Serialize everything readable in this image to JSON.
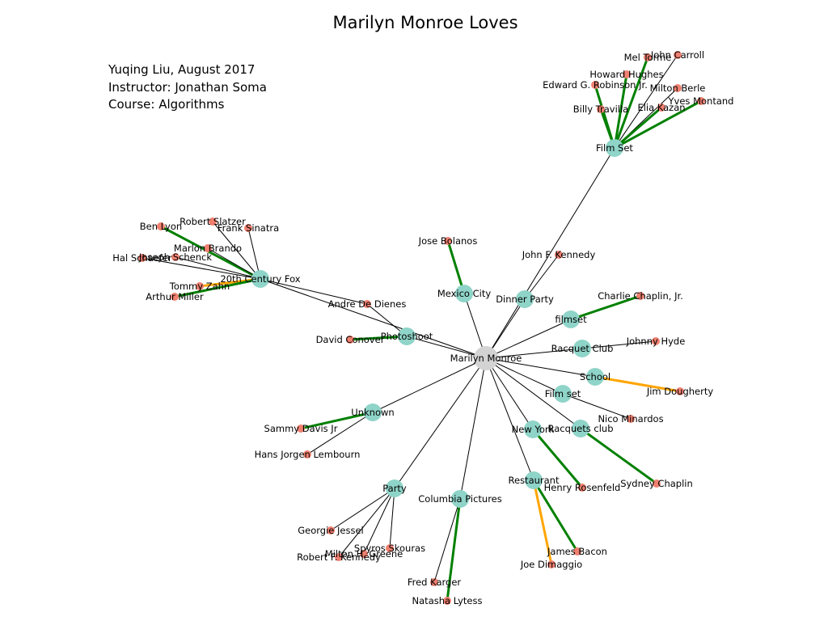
{
  "title": "Marilyn Monroe Loves",
  "credits": {
    "author_line": "Yuqing Liu, August 2017",
    "instructor_line": "Instructor: Jonathan Soma",
    "course_line": "Course: Algorithms"
  },
  "colors": {
    "center_node": "#d3d3d3",
    "place_node": "#8fd4c8",
    "person_node": "#f08070",
    "edge_plain": "#000000",
    "edge_green": "#008000",
    "edge_orange": "#ffa500"
  },
  "nodes": {
    "center": {
      "label": "Marilyn Monroe"
    },
    "film_set": {
      "label": "Film Set"
    },
    "fox": {
      "label": "20th Century Fox"
    },
    "mexico_city": {
      "label": "Mexico City"
    },
    "dinner_party": {
      "label": "Dinner Party"
    },
    "photoshoot": {
      "label": "Photoshoot"
    },
    "filmset_lc": {
      "label": "filmset"
    },
    "racquet_club": {
      "label": "Racquet Club"
    },
    "school": {
      "label": "School"
    },
    "film_set_lc": {
      "label": "Film set"
    },
    "new_york": {
      "label": "New York"
    },
    "racquets_club": {
      "label": "Racquets club"
    },
    "unknown": {
      "label": "Unknown"
    },
    "party": {
      "label": "Party"
    },
    "columbia": {
      "label": "Columbia Pictures"
    },
    "restaurant": {
      "label": "Restaurant"
    },
    "mel_torme": {
      "label": "Mel Torme"
    },
    "john_carroll": {
      "label": "John Carroll"
    },
    "howard_hughes": {
      "label": "Howard Hughes"
    },
    "edward_robinson": {
      "label": "Edward G. Robinson Jr."
    },
    "milton_berle": {
      "label": "Milton Berle"
    },
    "yves_montand": {
      "label": "Yves Montand"
    },
    "elia_kazan": {
      "label": "Elia Kazan"
    },
    "billy_travilla": {
      "label": "Billy Travilla"
    },
    "robert_slatzer": {
      "label": "Robert Slatzer"
    },
    "ben_lyon": {
      "label": "Ben Lyon"
    },
    "frank_sinatra": {
      "label": "Frank Sinatra"
    },
    "marlon_brando": {
      "label": "Marlon Brando"
    },
    "hal_schaefer": {
      "label": "Hal Schaefer"
    },
    "joseph_schenck": {
      "label": "Joseph Schenck"
    },
    "tommy_zahn": {
      "label": "Tommy Zahn"
    },
    "arthur_miller": {
      "label": "Arthur Miller"
    },
    "jose_bolanos": {
      "label": "Jose Bolanos"
    },
    "jfk": {
      "label": "John F. Kennedy"
    },
    "andre_de_dienes": {
      "label": "Andre De Dienes"
    },
    "david_conover": {
      "label": "David Conover"
    },
    "charlie_chaplin_jr": {
      "label": "Charlie Chaplin, Jr."
    },
    "johnny_hyde": {
      "label": "Johnny Hyde"
    },
    "jim_dougherty": {
      "label": "Jim Dougherty"
    },
    "nico_minardos": {
      "label": "Nico Minardos"
    },
    "sammy_davis": {
      "label": "Sammy Davis Jr"
    },
    "hans_jorgen": {
      "label": "Hans Jorgen Lembourn"
    },
    "sydney_chaplin": {
      "label": "Sydney Chaplin"
    },
    "henry_rosenfeld": {
      "label": "Henry Rosenfeld"
    },
    "georgie_jessel": {
      "label": "Georgie Jessel"
    },
    "spyros_skouras": {
      "label": "Spyros Skouras"
    },
    "milton_greene": {
      "label": "Milton H. Greene"
    },
    "rfk": {
      "label": "Robert F. Kennedy"
    },
    "james_bacon": {
      "label": "James Bacon"
    },
    "joe_dimaggio": {
      "label": "Joe Dimaggio"
    },
    "fred_karger": {
      "label": "Fred Karger"
    },
    "natasha_lytess": {
      "label": "Natasha Lytess"
    }
  },
  "edges": [
    [
      "center",
      "film_set",
      "plain"
    ],
    [
      "center",
      "fox",
      "plain"
    ],
    [
      "center",
      "mexico_city",
      "plain"
    ],
    [
      "center",
      "dinner_party",
      "plain"
    ],
    [
      "center",
      "photoshoot",
      "plain"
    ],
    [
      "center",
      "filmset_lc",
      "plain"
    ],
    [
      "center",
      "racquet_club",
      "plain"
    ],
    [
      "center",
      "school",
      "plain"
    ],
    [
      "center",
      "film_set_lc",
      "plain"
    ],
    [
      "center",
      "new_york",
      "plain"
    ],
    [
      "center",
      "racquets_club",
      "plain"
    ],
    [
      "center",
      "unknown",
      "plain"
    ],
    [
      "center",
      "party",
      "plain"
    ],
    [
      "center",
      "columbia",
      "plain"
    ],
    [
      "center",
      "restaurant",
      "plain"
    ],
    [
      "film_set",
      "mel_torme",
      "green"
    ],
    [
      "film_set",
      "john_carroll",
      "plain"
    ],
    [
      "film_set",
      "howard_hughes",
      "green"
    ],
    [
      "film_set",
      "edward_robinson",
      "green"
    ],
    [
      "film_set",
      "milton_berle",
      "plain"
    ],
    [
      "film_set",
      "yves_montand",
      "green"
    ],
    [
      "film_set",
      "elia_kazan",
      "green"
    ],
    [
      "film_set",
      "billy_travilla",
      "green"
    ],
    [
      "fox",
      "robert_slatzer",
      "plain"
    ],
    [
      "fox",
      "ben_lyon",
      "green"
    ],
    [
      "fox",
      "frank_sinatra",
      "plain"
    ],
    [
      "fox",
      "marlon_brando",
      "plain"
    ],
    [
      "fox",
      "hal_schaefer",
      "plain"
    ],
    [
      "fox",
      "joseph_schenck",
      "plain"
    ],
    [
      "fox",
      "tommy_zahn",
      "orange"
    ],
    [
      "fox",
      "arthur_miller",
      "green"
    ],
    [
      "fox",
      "andre_de_dienes",
      "plain"
    ],
    [
      "mexico_city",
      "jose_bolanos",
      "green"
    ],
    [
      "dinner_party",
      "jfk",
      "plain"
    ],
    [
      "photoshoot",
      "andre_de_dienes",
      "plain"
    ],
    [
      "photoshoot",
      "david_conover",
      "green"
    ],
    [
      "filmset_lc",
      "charlie_chaplin_jr",
      "green"
    ],
    [
      "racquet_club",
      "johnny_hyde",
      "plain"
    ],
    [
      "school",
      "jim_dougherty",
      "orange"
    ],
    [
      "film_set_lc",
      "nico_minardos",
      "plain"
    ],
    [
      "unknown",
      "sammy_davis",
      "green"
    ],
    [
      "unknown",
      "hans_jorgen",
      "plain"
    ],
    [
      "racquets_club",
      "sydney_chaplin",
      "green"
    ],
    [
      "new_york",
      "henry_rosenfeld",
      "green"
    ],
    [
      "party",
      "georgie_jessel",
      "plain"
    ],
    [
      "party",
      "spyros_skouras",
      "plain"
    ],
    [
      "party",
      "milton_greene",
      "plain"
    ],
    [
      "party",
      "rfk",
      "plain"
    ],
    [
      "restaurant",
      "james_bacon",
      "green"
    ],
    [
      "restaurant",
      "joe_dimaggio",
      "orange"
    ],
    [
      "columbia",
      "fred_karger",
      "plain"
    ],
    [
      "columbia",
      "natasha_lytess",
      "green"
    ]
  ]
}
